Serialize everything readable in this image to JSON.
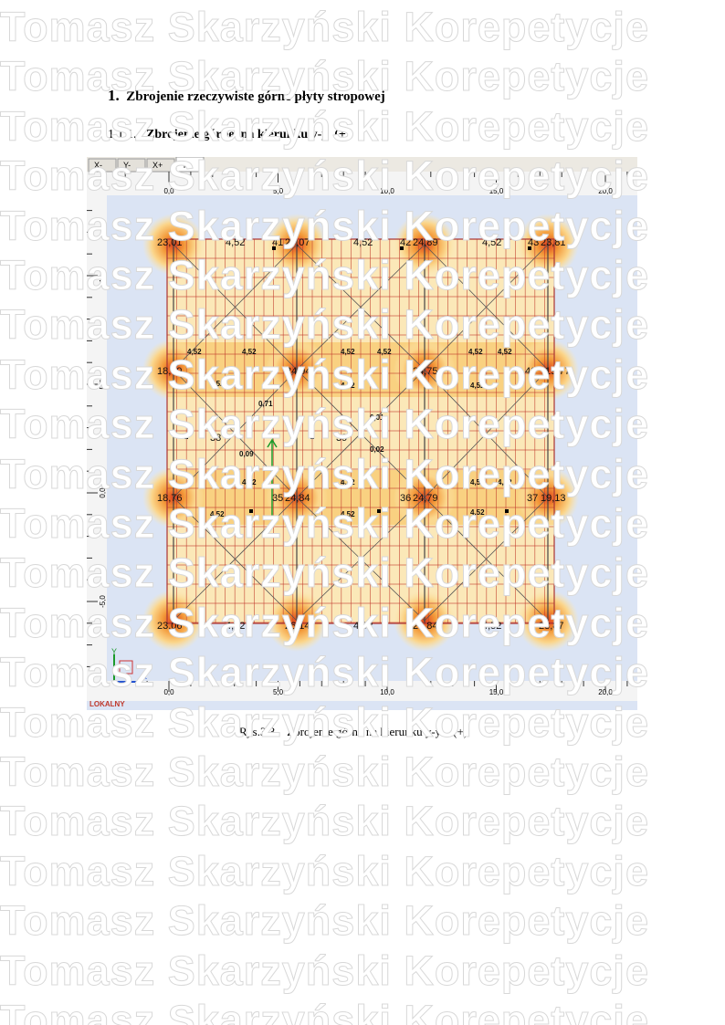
{
  "watermark": "Tomasz Skarzyński Korepetycje",
  "heading": {
    "number": "1.",
    "text": "Zbrojenie rzeczywiste górne płyty stropowej"
  },
  "subheading": {
    "number": "1.1.1.",
    "text": "Zbrojenie górne  na kierunku y-y  (+)"
  },
  "figure": {
    "tabs": [
      "X-",
      "Y-",
      "X+",
      "Y+"
    ],
    "ruler_x": [
      "0,0",
      "5,0",
      "10,0",
      "15,0",
      "20,0"
    ],
    "ruler_y": [
      "10,0",
      "5,0",
      "0,0",
      "-5,0"
    ],
    "axis_x": "X",
    "axis_y": "Y",
    "mode": "LOKALNY",
    "labels": [
      "23,01",
      "4,52",
      "41",
      "20,07",
      "4,52",
      "42",
      "24,89",
      "4,52",
      "43",
      "23,81",
      "18,79",
      "24,94",
      "24,75",
      "40",
      "19,77",
      "18,76",
      "35",
      "24,84",
      "36",
      "24,79",
      "37",
      "19,13",
      "23,06",
      "4,52",
      "26,14",
      "4,52",
      "24,84",
      "4,52",
      "23,87",
      "38",
      "39",
      "0,71",
      "0,09",
      "0,01",
      "0,02",
      "4,52",
      "4,52",
      "4,52",
      "4,52",
      "4,52",
      "4,52",
      "4,52",
      "4,52",
      "4,52",
      "4,52",
      "4,52",
      "4,52",
      "4,52",
      "4,52",
      "4,52",
      "4,52"
    ]
  },
  "caption": "Rys.3.3.   Zbrojenie górne na kierunku y-y    (+)"
}
